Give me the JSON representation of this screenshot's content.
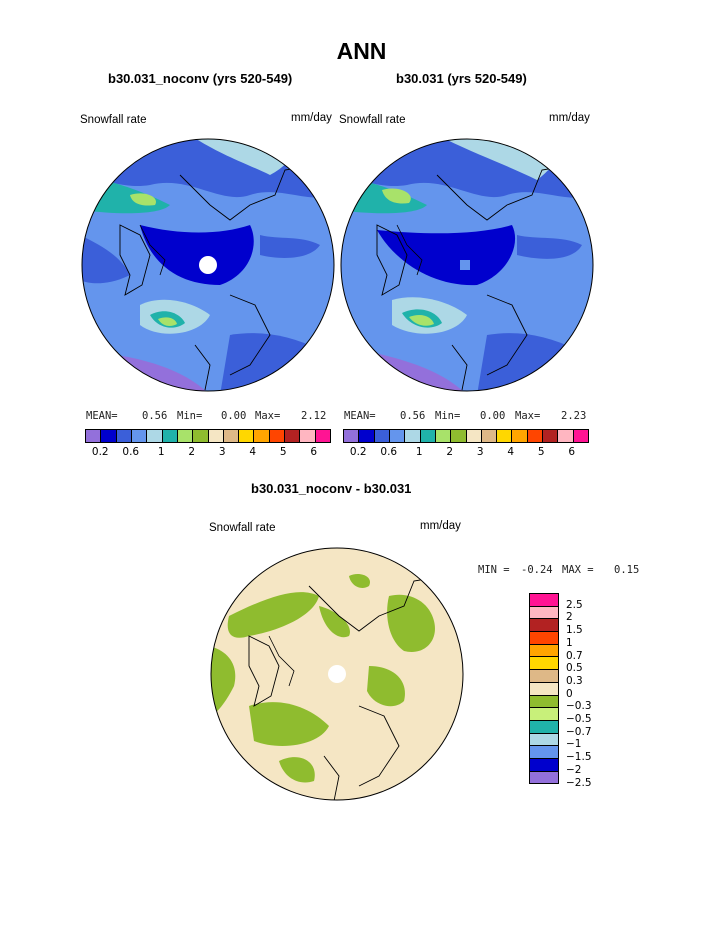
{
  "title": "ANN",
  "panels": [
    {
      "title": "b30.031_noconv (yrs 520-549)",
      "variable": "Snowfall rate",
      "units": "mm/day",
      "stats": {
        "mean_label": "MEAN=",
        "mean": "0.56",
        "min_label": "Min=",
        "min": "0.00",
        "max_label": "Max=",
        "max": "2.12"
      }
    },
    {
      "title": "b30.031 (yrs 520-549)",
      "variable": "Snowfall rate",
      "units": "mm/day",
      "stats": {
        "mean_label": "MEAN=",
        "mean": "0.56",
        "min_label": "Min=",
        "min": "0.00",
        "max_label": "Max=",
        "max": "2.23"
      }
    },
    {
      "title": "b30.031_noconv - b30.031",
      "variable": "Snowfall rate",
      "units": "mm/day",
      "stats": {
        "min_label": "MIN =",
        "min": "-0.24",
        "max_label": "MAX =",
        "max": "0.15"
      }
    }
  ],
  "colorbar_top": {
    "colors": [
      "#9370db",
      "#0000cd",
      "#3b5fd9",
      "#6495ed",
      "#add8e6",
      "#20b2aa",
      "#a8e26a",
      "#8fbc2f",
      "#f5e6c4",
      "#deb887",
      "#ffd700",
      "#ffa500",
      "#ff4500",
      "#b22222",
      "#ffb6c1",
      "#ff1493"
    ],
    "labels": [
      "0.2",
      "0.6",
      "1",
      "2",
      "3",
      "4",
      "5",
      "6"
    ]
  },
  "colorbar_diff": {
    "colors": [
      "#ff1493",
      "#ffb6c1",
      "#b22222",
      "#ff4500",
      "#ffa500",
      "#ffd700",
      "#deb887",
      "#f5e6c4",
      "#8fbc2f",
      "#c8f07a",
      "#20b2aa",
      "#add8e6",
      "#6495ed",
      "#0000cd",
      "#9370db"
    ],
    "labels": [
      "2.5",
      "2",
      "1.5",
      "1",
      "0.7",
      "0.5",
      "0.3",
      "0",
      "−0.3",
      "−0.5",
      "−0.7",
      "−1",
      "−1.5",
      "−2",
      "−2.5"
    ]
  },
  "chart_data": [
    {
      "type": "heatmap",
      "title": "b30.031_noconv (yrs 520-549)",
      "variable": "Snowfall rate",
      "units": "mm/day",
      "mean": 0.56,
      "min": 0.0,
      "max": 2.12
    },
    {
      "type": "heatmap",
      "title": "b30.031 (yrs 520-549)",
      "variable": "Snowfall rate",
      "units": "mm/day",
      "mean": 0.56,
      "min": 0.0,
      "max": 2.23
    },
    {
      "type": "heatmap",
      "title": "b30.031_noconv - b30.031",
      "variable": "Snowfall rate",
      "units": "mm/day",
      "min": -0.24,
      "max": 0.15
    }
  ]
}
